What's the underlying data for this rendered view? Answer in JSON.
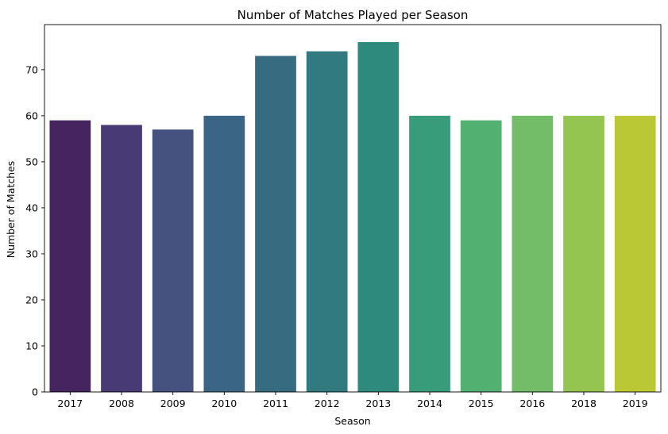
{
  "chart_data": {
    "type": "bar",
    "title": "Number of Matches Played per Season",
    "xlabel": "Season",
    "ylabel": "Number of Matches",
    "categories": [
      "2017",
      "2008",
      "2009",
      "2010",
      "2011",
      "2012",
      "2013",
      "2014",
      "2015",
      "2016",
      "2018",
      "2019"
    ],
    "values": [
      59,
      58,
      57,
      60,
      73,
      74,
      76,
      60,
      59,
      60,
      60,
      60
    ],
    "colors": [
      "#46245f",
      "#473a75",
      "#45527f",
      "#3b6584",
      "#376c80",
      "#317a80",
      "#2e8a7d",
      "#389c7a",
      "#52b071",
      "#73bd69",
      "#95c551",
      "#b9c834"
    ],
    "ylim": [
      0,
      79.8
    ],
    "yticks": [
      0,
      10,
      20,
      30,
      40,
      50,
      60,
      70
    ],
    "grid": false,
    "legend": "none"
  }
}
